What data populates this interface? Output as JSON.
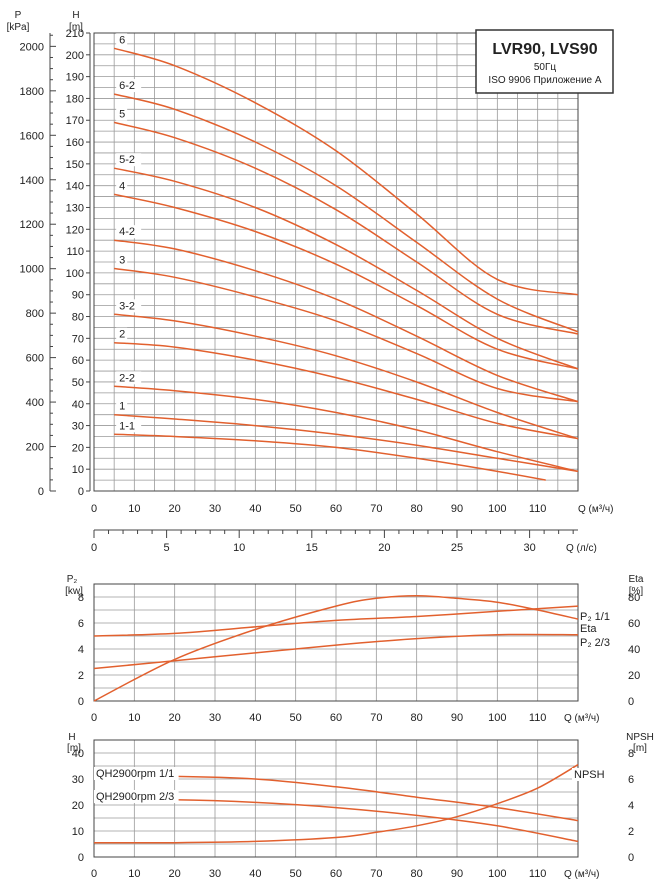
{
  "chart_data": [
    {
      "type": "line",
      "legend": {
        "title": "LVR90, LVS90",
        "subtitle1": "50Гц",
        "subtitle2": "ISO 9906 Приложение А"
      },
      "left_axis": {
        "label": "P",
        "unit": "[kPa]",
        "ticks": [
          "0",
          "200",
          "400",
          "600",
          "800",
          "1000",
          "1200",
          "1400",
          "1600",
          "1800",
          "2000"
        ]
      },
      "y_axis": {
        "label": "H",
        "unit": "[m]",
        "range": [
          0,
          210
        ],
        "ticks": [
          "0",
          "10",
          "20",
          "30",
          "40",
          "50",
          "60",
          "70",
          "80",
          "90",
          "100",
          "110",
          "120",
          "130",
          "140",
          "150",
          "160",
          "170",
          "180",
          "190",
          "200",
          "210"
        ]
      },
      "x_axis": {
        "label": "Q (м³/ч)",
        "range": [
          0,
          120
        ],
        "ticks": [
          "0",
          "10",
          "20",
          "30",
          "40",
          "50",
          "60",
          "70",
          "80",
          "90",
          "100",
          "110"
        ]
      },
      "x_axis2": {
        "label": "Q (л/с)",
        "ticks": [
          "0",
          "5",
          "10",
          "15",
          "20",
          "25",
          "30"
        ]
      },
      "series": [
        {
          "name": "6",
          "x": [
            5,
            20,
            40,
            60,
            80,
            100,
            120
          ],
          "y": [
            203,
            195,
            178,
            156,
            127,
            97,
            90
          ]
        },
        {
          "name": "6-2",
          "x": [
            5,
            20,
            40,
            60,
            80,
            100,
            120
          ],
          "y": [
            182,
            175,
            160,
            140,
            114,
            88,
            73
          ]
        },
        {
          "name": "5",
          "x": [
            5,
            20,
            40,
            60,
            80,
            100,
            120
          ],
          "y": [
            169,
            162,
            148,
            129,
            105,
            81,
            72
          ]
        },
        {
          "name": "5-2",
          "x": [
            5,
            20,
            40,
            60,
            80,
            100,
            120
          ],
          "y": [
            148,
            142,
            130,
            113,
            92,
            70,
            56
          ]
        },
        {
          "name": "4",
          "x": [
            5,
            20,
            40,
            60,
            80,
            100,
            120
          ],
          "y": [
            136,
            130,
            119,
            104,
            85,
            65,
            56
          ]
        },
        {
          "name": "4-2",
          "x": [
            5,
            20,
            40,
            60,
            80,
            100,
            120
          ],
          "y": [
            115,
            111,
            101,
            88,
            71,
            53,
            41
          ]
        },
        {
          "name": "3",
          "x": [
            5,
            20,
            40,
            60,
            80,
            100,
            120
          ],
          "y": [
            102,
            98,
            89,
            78,
            63,
            47,
            41
          ]
        },
        {
          "name": "3-2",
          "x": [
            5,
            20,
            40,
            60,
            80,
            100,
            120
          ],
          "y": [
            81,
            78,
            71,
            62,
            50,
            36,
            24
          ]
        },
        {
          "name": "2",
          "x": [
            5,
            20,
            40,
            60,
            80,
            100,
            120
          ],
          "y": [
            68,
            66,
            60,
            52,
            42,
            31,
            24
          ]
        },
        {
          "name": "2-2",
          "x": [
            5,
            20,
            40,
            60,
            80,
            100,
            120
          ],
          "y": [
            48,
            46,
            42,
            36,
            28,
            18,
            9
          ]
        },
        {
          "name": "1",
          "x": [
            5,
            20,
            40,
            60,
            80,
            100,
            120
          ],
          "y": [
            35,
            33,
            30,
            26,
            21,
            15,
            9
          ]
        },
        {
          "name": "1-1",
          "x": [
            5,
            20,
            40,
            60,
            80,
            100,
            112
          ],
          "y": [
            26,
            25,
            23,
            20,
            15,
            9,
            5
          ]
        }
      ]
    },
    {
      "type": "line",
      "left_axis": {
        "label": "P₂",
        "unit": "[kw]",
        "range": [
          0,
          9
        ],
        "ticks": [
          "0",
          "2",
          "4",
          "6",
          "8"
        ]
      },
      "right_axis": {
        "label": "Eta",
        "unit": "[%]",
        "range": [
          0,
          90
        ],
        "ticks": [
          "0",
          "20",
          "40",
          "60",
          "80"
        ]
      },
      "x_axis": {
        "label": "Q (м³/ч)",
        "range": [
          0,
          120
        ],
        "ticks": [
          "0",
          "10",
          "20",
          "30",
          "40",
          "50",
          "60",
          "70",
          "80",
          "90",
          "100",
          "110"
        ]
      },
      "series": [
        {
          "name": "P₂ 1/1",
          "axis": "left",
          "x": [
            0,
            20,
            40,
            60,
            80,
            100,
            120
          ],
          "y": [
            5.0,
            5.2,
            5.7,
            6.2,
            6.5,
            6.9,
            7.3
          ]
        },
        {
          "name": "Eta",
          "axis": "right",
          "x": [
            0,
            20,
            40,
            60,
            70,
            80,
            90,
            100,
            110,
            120
          ],
          "y": [
            0,
            32,
            55,
            73,
            79,
            81,
            79,
            76,
            70,
            63
          ]
        },
        {
          "name": "P₂ 2/3",
          "axis": "left",
          "x": [
            0,
            20,
            40,
            60,
            80,
            100,
            120
          ],
          "y": [
            2.5,
            3.1,
            3.7,
            4.3,
            4.8,
            5.1,
            5.1
          ]
        }
      ]
    },
    {
      "type": "line",
      "left_axis": {
        "label": "H",
        "unit": "[m]",
        "range": [
          0,
          45
        ],
        "ticks": [
          "0",
          "10",
          "20",
          "30",
          "40"
        ]
      },
      "right_axis": {
        "label": "NPSH",
        "unit": "[m]",
        "range": [
          0,
          9
        ],
        "ticks": [
          "0",
          "2",
          "4",
          "6",
          "8"
        ]
      },
      "x_axis": {
        "label": "Q (м³/ч)",
        "range": [
          0,
          120
        ],
        "ticks": [
          "0",
          "10",
          "20",
          "30",
          "40",
          "50",
          "60",
          "70",
          "80",
          "90",
          "100",
          "110"
        ]
      },
      "series": [
        {
          "name": "QH2900rpm 1/1",
          "axis": "left",
          "x": [
            0,
            20,
            40,
            60,
            80,
            100,
            120
          ],
          "y": [
            31,
            31,
            30,
            27,
            23,
            19,
            14
          ]
        },
        {
          "name": "QH2900rpm 2/3",
          "axis": "left",
          "x": [
            0,
            20,
            40,
            60,
            80,
            100,
            120
          ],
          "y": [
            22,
            22,
            21,
            19,
            16,
            12,
            6
          ]
        },
        {
          "name": "NPSH",
          "axis": "right",
          "x": [
            0,
            20,
            40,
            60,
            70,
            80,
            90,
            100,
            110,
            120
          ],
          "y": [
            1.1,
            1.1,
            1.2,
            1.5,
            1.9,
            2.4,
            3.1,
            4.1,
            5.3,
            7.1
          ]
        }
      ]
    }
  ]
}
